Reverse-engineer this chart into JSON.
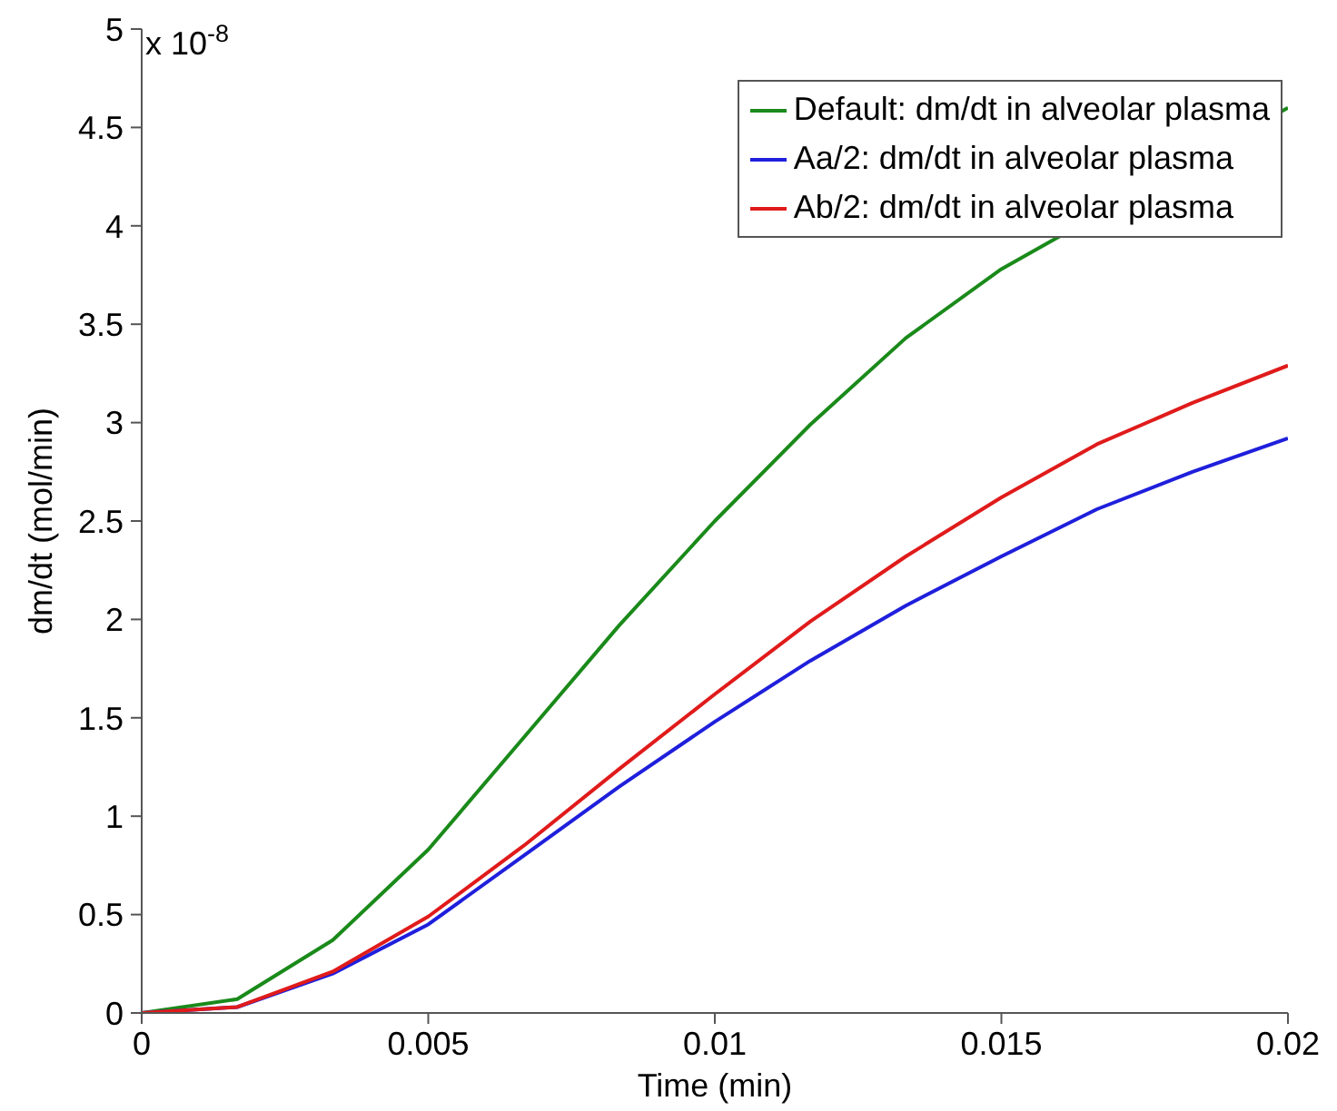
{
  "chart_data": {
    "type": "line",
    "xlabel": "Time (min)",
    "ylabel": "dm/dt (mol/min)",
    "annotations": [
      "x 10$^{-8}$"
    ],
    "x": [
      0,
      0.001667,
      0.003333,
      0.005,
      0.006667,
      0.008333,
      0.01,
      0.011667,
      0.013333,
      0.015,
      0.016667,
      0.018333,
      0.02
    ],
    "series": [
      {
        "name": "Default: dm/dt in alveolar plasma",
        "color": "#1a8a1a",
        "values": [
          0,
          0.07,
          0.37,
          0.83,
          1.4,
          1.97,
          2.5,
          2.99,
          3.43,
          3.78,
          null,
          null,
          4.6
        ]
      },
      {
        "name": "Aa/2: dm/dt in alveolar plasma",
        "color": "#1f1fdc",
        "values": [
          0,
          0.03,
          0.2,
          0.45,
          0.8,
          1.15,
          1.48,
          1.79,
          2.07,
          2.32,
          2.56,
          2.75,
          2.92
        ]
      },
      {
        "name": "Ab/2: dm/dt in alveolar plasma",
        "color": "#e01b1b",
        "values": [
          0,
          0.03,
          0.21,
          0.49,
          0.85,
          1.24,
          1.62,
          1.99,
          2.32,
          2.62,
          2.89,
          3.1,
          3.29
        ]
      }
    ],
    "xlim": [
      0,
      0.02
    ],
    "xticks": [
      0,
      0.005,
      0.01,
      0.015,
      0.02
    ],
    "ylim": [
      0,
      5
    ],
    "yticks": [
      0,
      0.5,
      1,
      1.5,
      2,
      2.5,
      3,
      3.5,
      4,
      4.5,
      5
    ],
    "grid": false,
    "legend": "top right",
    "marker": "none",
    "line_style": "solid"
  }
}
